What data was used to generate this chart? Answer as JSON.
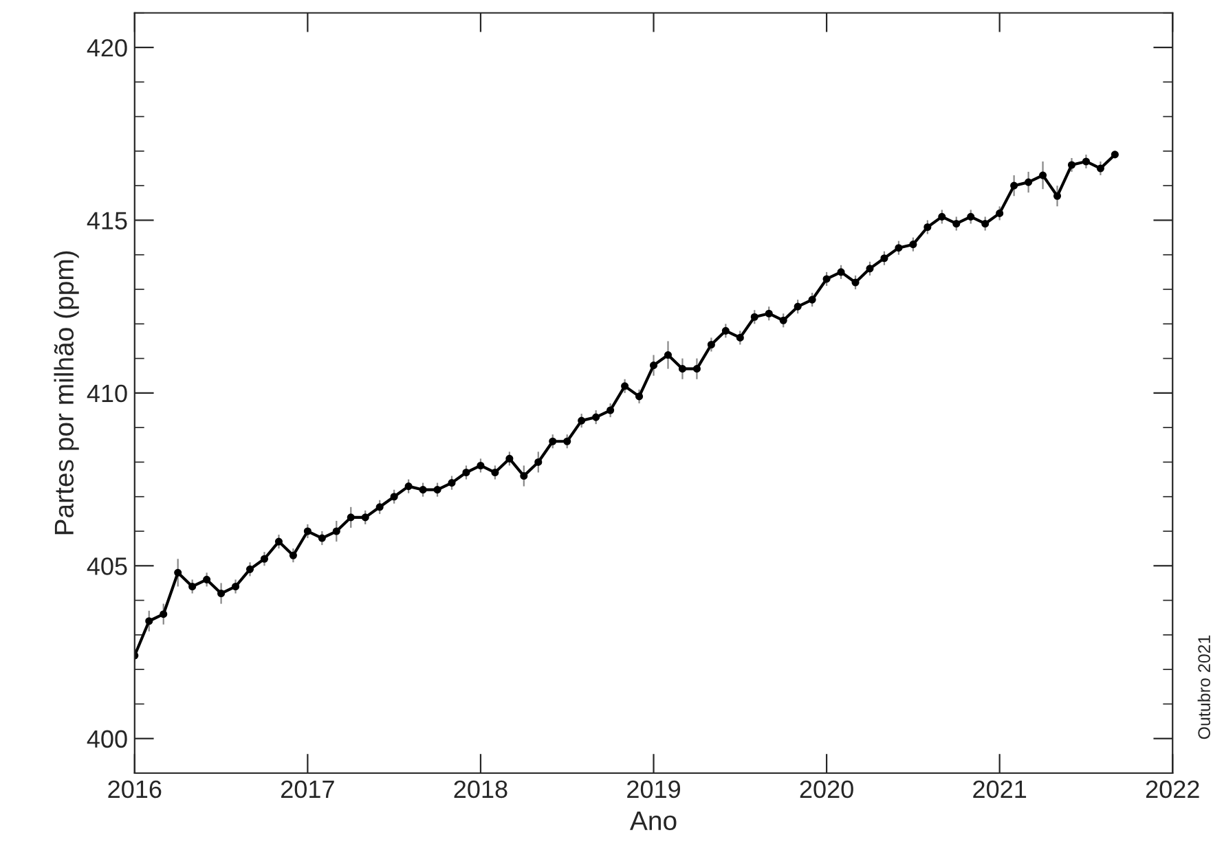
{
  "chart_data": {
    "type": "line",
    "xlabel": "Ano",
    "ylabel": "Partes por milhão (ppm)",
    "annotations": [
      "Outubro 2021"
    ],
    "x": [
      "2016-01",
      "2016-02",
      "2016-03",
      "2016-04",
      "2016-05",
      "2016-06",
      "2016-07",
      "2016-08",
      "2016-09",
      "2016-10",
      "2016-11",
      "2016-12",
      "2017-01",
      "2017-02",
      "2017-03",
      "2017-04",
      "2017-05",
      "2017-06",
      "2017-07",
      "2017-08",
      "2017-09",
      "2017-10",
      "2017-11",
      "2017-12",
      "2018-01",
      "2018-02",
      "2018-03",
      "2018-04",
      "2018-05",
      "2018-06",
      "2018-07",
      "2018-08",
      "2018-09",
      "2018-10",
      "2018-11",
      "2018-12",
      "2019-01",
      "2019-02",
      "2019-03",
      "2019-04",
      "2019-05",
      "2019-06",
      "2019-07",
      "2019-08",
      "2019-09",
      "2019-10",
      "2019-11",
      "2019-12",
      "2020-01",
      "2020-02",
      "2020-03",
      "2020-04",
      "2020-05",
      "2020-06",
      "2020-07",
      "2020-08",
      "2020-09",
      "2020-10",
      "2020-11",
      "2020-12",
      "2021-01",
      "2021-02",
      "2021-03",
      "2021-04",
      "2021-05",
      "2021-06",
      "2021-07",
      "2021-08",
      "2021-09"
    ],
    "series": [
      {
        "color": "#000000",
        "values": [
          402.4,
          403.4,
          403.6,
          404.8,
          404.4,
          404.6,
          404.2,
          404.4,
          404.9,
          405.2,
          405.7,
          405.3,
          406.0,
          405.8,
          406.0,
          406.4,
          406.4,
          406.7,
          407.0,
          407.3,
          407.2,
          407.2,
          407.4,
          407.7,
          407.9,
          407.7,
          408.1,
          407.6,
          408.0,
          408.6,
          408.6,
          409.2,
          409.3,
          409.5,
          410.2,
          409.9,
          410.8,
          411.1,
          410.7,
          410.7,
          411.4,
          411.8,
          411.6,
          412.2,
          412.3,
          412.1,
          412.5,
          412.7,
          413.3,
          413.5,
          413.2,
          413.6,
          413.9,
          414.2,
          414.3,
          414.8,
          415.1,
          414.9,
          415.1,
          414.9,
          415.2,
          416.0,
          416.1,
          416.3,
          415.7,
          416.6,
          416.7,
          416.5,
          416.9
        ],
        "errors": [
          0.2,
          0.3,
          0.3,
          0.4,
          0.2,
          0.2,
          0.3,
          0.2,
          0.2,
          0.2,
          0.2,
          0.2,
          0.2,
          0.2,
          0.3,
          0.3,
          0.2,
          0.2,
          0.2,
          0.2,
          0.2,
          0.2,
          0.2,
          0.2,
          0.2,
          0.2,
          0.2,
          0.3,
          0.3,
          0.2,
          0.2,
          0.2,
          0.2,
          0.2,
          0.2,
          0.2,
          0.3,
          0.4,
          0.3,
          0.3,
          0.2,
          0.2,
          0.2,
          0.2,
          0.2,
          0.2,
          0.2,
          0.2,
          0.2,
          0.2,
          0.2,
          0.2,
          0.2,
          0.2,
          0.2,
          0.2,
          0.2,
          0.2,
          0.2,
          0.2,
          0.2,
          0.3,
          0.3,
          0.4,
          0.3,
          0.2,
          0.2,
          0.2,
          0.1
        ]
      }
    ],
    "xlim": [
      "2016",
      "2022"
    ],
    "xticks": [
      "2016",
      "2017",
      "2018",
      "2019",
      "2020",
      "2021",
      "2022"
    ],
    "ylim": [
      399,
      421
    ],
    "yticks": [
      400,
      405,
      410,
      415,
      420
    ],
    "marker": "circle",
    "line_style": "solid",
    "grid": false,
    "legend": false
  }
}
